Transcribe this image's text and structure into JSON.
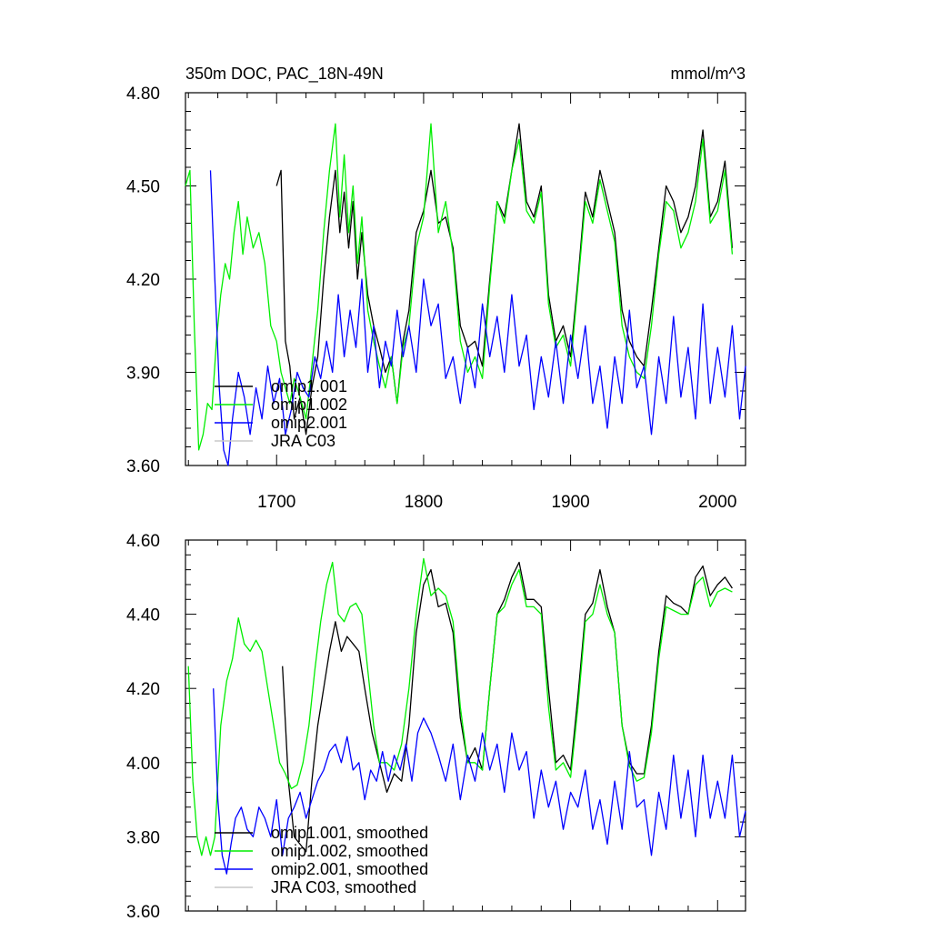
{
  "chart_data": [
    {
      "type": "line",
      "title": "350m DOC, PAC_18N-49N",
      "units": "mmol/m^3",
      "xlabel": "",
      "ylabel": "",
      "xlim": [
        1638,
        2019
      ],
      "ylim": [
        3.6,
        4.8
      ],
      "xticks": [
        1700,
        1800,
        1900,
        2000
      ],
      "yticks": [
        "3.60",
        "3.90",
        "4.20",
        "4.50",
        "4.80"
      ],
      "xtick_labels": [
        "1700",
        "1800",
        "1900",
        "2000"
      ],
      "legend_position": "bottom-left",
      "series": [
        {
          "name": "omip1.001",
          "color": "#000000",
          "x": [
            1700,
            1703,
            1706,
            1709,
            1712,
            1716,
            1720,
            1724,
            1728,
            1732,
            1736,
            1740,
            1743,
            1746,
            1749,
            1752,
            1755,
            1758,
            1762,
            1766,
            1770,
            1774,
            1778,
            1782,
            1786,
            1790,
            1795,
            1800,
            1805,
            1810,
            1815,
            1820,
            1825,
            1830,
            1835,
            1840,
            1845,
            1850,
            1855,
            1860,
            1865,
            1870,
            1875,
            1880,
            1885,
            1890,
            1895,
            1900,
            1905,
            1910,
            1915,
            1920,
            1925,
            1930,
            1935,
            1940,
            1945,
            1950,
            1955,
            1960,
            1965,
            1970,
            1975,
            1980,
            1985,
            1990,
            1995,
            2000,
            2005,
            2010
          ],
          "y": [
            4.5,
            4.55,
            4.0,
            3.92,
            3.75,
            3.82,
            3.7,
            3.85,
            3.95,
            4.2,
            4.4,
            4.55,
            4.35,
            4.48,
            4.3,
            4.45,
            4.2,
            4.35,
            4.15,
            4.05,
            3.98,
            3.9,
            3.95,
            3.8,
            4.0,
            4.1,
            4.35,
            4.42,
            4.55,
            4.38,
            4.4,
            4.3,
            4.05,
            3.98,
            4.0,
            3.92,
            4.2,
            4.45,
            4.4,
            4.55,
            4.7,
            4.45,
            4.4,
            4.5,
            4.15,
            4.0,
            4.05,
            3.95,
            4.2,
            4.48,
            4.4,
            4.55,
            4.45,
            4.35,
            4.1,
            4.0,
            3.95,
            3.92,
            4.1,
            4.3,
            4.5,
            4.45,
            4.35,
            4.4,
            4.5,
            4.68,
            4.4,
            4.45,
            4.58,
            4.3
          ]
        },
        {
          "name": "omip1.002",
          "color": "#00ee00",
          "x": [
            1638,
            1641,
            1644,
            1647,
            1650,
            1653,
            1656,
            1659,
            1662,
            1665,
            1668,
            1671,
            1674,
            1677,
            1680,
            1684,
            1688,
            1692,
            1696,
            1700,
            1703,
            1706,
            1709,
            1712,
            1716,
            1720,
            1724,
            1728,
            1732,
            1736,
            1740,
            1743,
            1746,
            1749,
            1752,
            1755,
            1758,
            1762,
            1766,
            1770,
            1774,
            1778,
            1782,
            1786,
            1790,
            1795,
            1800,
            1805,
            1810,
            1815,
            1820,
            1825,
            1830,
            1835,
            1840,
            1845,
            1850,
            1855,
            1860,
            1865,
            1870,
            1875,
            1880,
            1885,
            1890,
            1895,
            1900,
            1905,
            1910,
            1915,
            1920,
            1925,
            1930,
            1935,
            1940,
            1945,
            1950,
            1955,
            1960,
            1965,
            1970,
            1975,
            1980,
            1985,
            1990,
            1995,
            2000,
            2005,
            2010
          ],
          "y": [
            4.5,
            4.55,
            4.05,
            3.65,
            3.7,
            3.8,
            3.78,
            4.0,
            4.15,
            4.25,
            4.2,
            4.35,
            4.45,
            4.28,
            4.4,
            4.3,
            4.35,
            4.25,
            4.05,
            4.0,
            3.9,
            3.85,
            3.8,
            3.88,
            3.82,
            3.75,
            3.92,
            4.1,
            4.35,
            4.55,
            4.7,
            4.4,
            4.6,
            4.35,
            4.5,
            4.25,
            4.4,
            4.1,
            4.0,
            3.92,
            3.85,
            3.95,
            3.8,
            3.98,
            4.05,
            4.3,
            4.4,
            4.7,
            4.35,
            4.45,
            4.28,
            4.0,
            3.9,
            3.95,
            3.88,
            4.18,
            4.45,
            4.38,
            4.55,
            4.65,
            4.42,
            4.38,
            4.48,
            4.12,
            3.98,
            4.02,
            3.92,
            4.18,
            4.45,
            4.38,
            4.52,
            4.42,
            4.32,
            4.05,
            3.95,
            3.9,
            3.88,
            4.05,
            4.28,
            4.45,
            4.42,
            4.3,
            4.35,
            4.45,
            4.65,
            4.38,
            4.42,
            4.55,
            4.28
          ]
        },
        {
          "name": "omip2.001",
          "color": "#0000ff",
          "x": [
            1655,
            1658,
            1661,
            1664,
            1667,
            1670,
            1674,
            1678,
            1682,
            1686,
            1690,
            1694,
            1698,
            1702,
            1706,
            1710,
            1714,
            1718,
            1722,
            1726,
            1730,
            1734,
            1738,
            1742,
            1746,
            1750,
            1754,
            1758,
            1762,
            1766,
            1770,
            1774,
            1778,
            1782,
            1786,
            1790,
            1795,
            1800,
            1805,
            1810,
            1815,
            1820,
            1825,
            1830,
            1835,
            1840,
            1845,
            1850,
            1855,
            1860,
            1865,
            1870,
            1875,
            1880,
            1885,
            1890,
            1895,
            1900,
            1905,
            1910,
            1915,
            1920,
            1925,
            1930,
            1935,
            1940,
            1945,
            1950,
            1955,
            1960,
            1965,
            1970,
            1975,
            1980,
            1985,
            1990,
            1995,
            2000,
            2005,
            2010,
            2015,
            2019
          ],
          "y": [
            4.55,
            4.2,
            3.85,
            3.65,
            3.6,
            3.75,
            3.9,
            3.82,
            3.7,
            3.85,
            3.75,
            3.92,
            3.8,
            3.88,
            3.7,
            3.78,
            3.9,
            3.85,
            3.82,
            3.95,
            3.88,
            4.0,
            3.9,
            4.15,
            3.95,
            4.1,
            3.98,
            4.2,
            3.9,
            4.05,
            3.85,
            4.0,
            3.92,
            4.1,
            3.95,
            4.05,
            3.9,
            4.2,
            4.05,
            4.12,
            3.88,
            3.95,
            3.8,
            3.98,
            3.85,
            4.12,
            3.95,
            4.08,
            3.9,
            4.15,
            3.92,
            4.02,
            3.78,
            3.95,
            3.82,
            4.0,
            3.8,
            4.02,
            3.88,
            4.05,
            3.8,
            3.92,
            3.72,
            3.95,
            3.8,
            4.1,
            3.85,
            3.92,
            3.7,
            3.95,
            3.8,
            4.08,
            3.82,
            3.98,
            3.75,
            4.12,
            3.8,
            3.98,
            3.82,
            4.05,
            3.75,
            3.92
          ]
        },
        {
          "name": "JRA C03",
          "color": "#c8c8c8",
          "x": [],
          "y": []
        }
      ]
    },
    {
      "type": "line",
      "title": "",
      "xlim": [
        1638,
        2019
      ],
      "ylim": [
        3.6,
        4.6
      ],
      "xticks": [
        1700,
        1800,
        1900,
        2000
      ],
      "yticks": [
        "3.60",
        "3.80",
        "4.00",
        "4.20",
        "4.40",
        "4.60"
      ],
      "xtick_labels": [],
      "legend_position": "bottom-left",
      "series": [
        {
          "name": "omip1.001, smoothed",
          "color": "#000000",
          "x": [
            1704,
            1708,
            1712,
            1716,
            1720,
            1724,
            1728,
            1732,
            1736,
            1740,
            1744,
            1748,
            1752,
            1756,
            1760,
            1765,
            1770,
            1775,
            1780,
            1785,
            1790,
            1795,
            1800,
            1805,
            1810,
            1815,
            1820,
            1825,
            1830,
            1835,
            1840,
            1845,
            1850,
            1855,
            1860,
            1865,
            1870,
            1875,
            1880,
            1885,
            1890,
            1895,
            1900,
            1905,
            1910,
            1915,
            1920,
            1925,
            1930,
            1935,
            1940,
            1945,
            1950,
            1955,
            1960,
            1965,
            1970,
            1975,
            1980,
            1985,
            1990,
            1995,
            2000,
            2005,
            2010
          ],
          "y": [
            4.26,
            3.95,
            3.8,
            3.78,
            3.76,
            3.95,
            4.1,
            4.2,
            4.3,
            4.38,
            4.3,
            4.34,
            4.32,
            4.3,
            4.2,
            4.08,
            4.0,
            3.92,
            3.97,
            3.95,
            4.1,
            4.35,
            4.48,
            4.52,
            4.42,
            4.43,
            4.35,
            4.12,
            4.0,
            4.04,
            3.98,
            4.2,
            4.4,
            4.44,
            4.5,
            4.54,
            4.44,
            4.44,
            4.42,
            4.2,
            4.0,
            4.02,
            3.98,
            4.18,
            4.4,
            4.43,
            4.52,
            4.42,
            4.35,
            4.1,
            4.0,
            3.97,
            3.97,
            4.1,
            4.3,
            4.45,
            4.43,
            4.42,
            4.4,
            4.5,
            4.53,
            4.45,
            4.48,
            4.5,
            4.47
          ]
        },
        {
          "name": "omip1.002, smoothed",
          "color": "#00ee00",
          "x": [
            1640,
            1643,
            1646,
            1649,
            1652,
            1655,
            1658,
            1662,
            1666,
            1670,
            1674,
            1678,
            1682,
            1686,
            1690,
            1694,
            1698,
            1702,
            1706,
            1710,
            1714,
            1718,
            1722,
            1726,
            1730,
            1734,
            1738,
            1742,
            1746,
            1750,
            1754,
            1758,
            1762,
            1766,
            1770,
            1775,
            1780,
            1785,
            1790,
            1795,
            1800,
            1805,
            1810,
            1815,
            1820,
            1825,
            1830,
            1835,
            1840,
            1845,
            1850,
            1855,
            1860,
            1865,
            1870,
            1875,
            1880,
            1885,
            1890,
            1895,
            1900,
            1905,
            1910,
            1915,
            1920,
            1925,
            1930,
            1935,
            1940,
            1945,
            1950,
            1955,
            1960,
            1965,
            1970,
            1975,
            1980,
            1985,
            1990,
            1995,
            2000,
            2005,
            2010
          ],
          "y": [
            4.26,
            3.95,
            3.8,
            3.75,
            3.8,
            3.75,
            3.8,
            4.1,
            4.22,
            4.28,
            4.39,
            4.32,
            4.3,
            4.33,
            4.3,
            4.2,
            4.1,
            4.0,
            3.97,
            3.93,
            3.94,
            4.0,
            4.1,
            4.25,
            4.38,
            4.48,
            4.54,
            4.4,
            4.38,
            4.42,
            4.43,
            4.4,
            4.25,
            4.1,
            4.0,
            4.0,
            3.98,
            4.05,
            4.2,
            4.4,
            4.55,
            4.45,
            4.47,
            4.45,
            4.38,
            4.15,
            4.0,
            4.0,
            3.98,
            4.2,
            4.4,
            4.42,
            4.48,
            4.52,
            4.42,
            4.42,
            4.4,
            4.15,
            3.98,
            4.0,
            3.96,
            4.15,
            4.38,
            4.4,
            4.48,
            4.4,
            4.35,
            4.1,
            3.99,
            3.95,
            3.96,
            4.08,
            4.28,
            4.42,
            4.41,
            4.4,
            4.4,
            4.48,
            4.5,
            4.42,
            4.46,
            4.47,
            4.46
          ]
        },
        {
          "name": "omip2.001, smoothed",
          "color": "#0000ff",
          "x": [
            1657,
            1660,
            1663,
            1666,
            1669,
            1672,
            1676,
            1680,
            1684,
            1688,
            1692,
            1696,
            1700,
            1704,
            1708,
            1712,
            1716,
            1720,
            1724,
            1728,
            1732,
            1736,
            1740,
            1744,
            1748,
            1752,
            1756,
            1760,
            1764,
            1768,
            1772,
            1776,
            1780,
            1784,
            1788,
            1792,
            1796,
            1800,
            1805,
            1810,
            1815,
            1820,
            1825,
            1830,
            1835,
            1840,
            1845,
            1850,
            1855,
            1860,
            1865,
            1870,
            1875,
            1880,
            1885,
            1890,
            1895,
            1900,
            1905,
            1910,
            1915,
            1920,
            1925,
            1930,
            1935,
            1940,
            1945,
            1950,
            1955,
            1960,
            1965,
            1970,
            1975,
            1980,
            1985,
            1990,
            1995,
            2000,
            2005,
            2010,
            2015,
            2019
          ],
          "y": [
            4.2,
            3.9,
            3.75,
            3.7,
            3.78,
            3.85,
            3.88,
            3.82,
            3.8,
            3.88,
            3.85,
            3.8,
            3.9,
            3.75,
            3.85,
            3.88,
            3.92,
            3.85,
            3.9,
            3.95,
            3.98,
            4.03,
            4.05,
            4.0,
            4.07,
            3.98,
            4.0,
            3.9,
            3.98,
            3.95,
            4.03,
            3.95,
            4.02,
            3.98,
            4.05,
            3.95,
            4.08,
            4.12,
            4.08,
            4.02,
            3.95,
            4.05,
            3.9,
            4.02,
            3.95,
            4.08,
            3.98,
            4.05,
            3.92,
            4.08,
            3.98,
            4.03,
            3.85,
            3.98,
            3.88,
            3.95,
            3.82,
            3.92,
            3.88,
            3.98,
            3.82,
            3.9,
            3.78,
            3.95,
            3.82,
            4.03,
            3.88,
            3.9,
            3.75,
            3.92,
            3.82,
            4.02,
            3.85,
            3.98,
            3.8,
            4.02,
            3.85,
            3.95,
            3.85,
            4.02,
            3.8,
            3.87
          ]
        },
        {
          "name": "JRA C03, smoothed",
          "color": "#c8c8c8",
          "x": [],
          "y": []
        }
      ]
    }
  ]
}
